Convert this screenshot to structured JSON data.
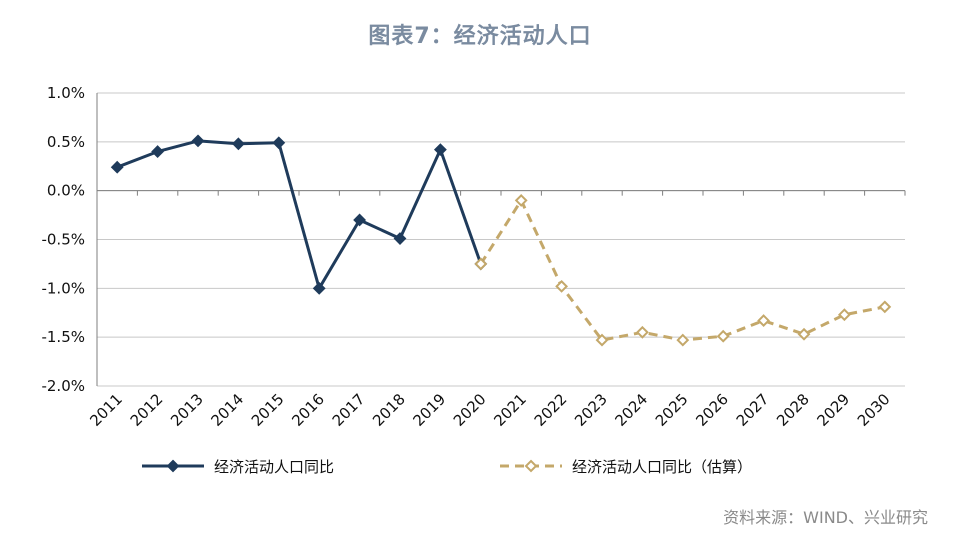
{
  "title": "图表7：经济活动人口",
  "source": "资料来源：WIND、兴业研究",
  "chart_data": {
    "type": "line",
    "categories": [
      "2011",
      "2012",
      "2013",
      "2014",
      "2015",
      "2016",
      "2017",
      "2018",
      "2019",
      "2020",
      "2021",
      "2022",
      "2023",
      "2024",
      "2025",
      "2026",
      "2027",
      "2028",
      "2029",
      "2030"
    ],
    "y_ticks": [
      "1.0%",
      "0.5%",
      "0.0%",
      "-0.5%",
      "-1.0%",
      "-1.5%",
      "-2.0%"
    ],
    "ylim": [
      -2.0,
      1.0
    ],
    "y_tick_values": [
      1.0,
      0.5,
      0.0,
      -0.5,
      -1.0,
      -1.5,
      -2.0
    ],
    "grid": true,
    "legend_position": "bottom",
    "series": [
      {
        "name": "经济活动人口同比",
        "style": "solid",
        "color": "#1f3b5b",
        "values": [
          0.24,
          0.4,
          0.51,
          0.48,
          0.49,
          -1.0,
          -0.3,
          -0.49,
          0.42,
          -0.75,
          null,
          null,
          null,
          null,
          null,
          null,
          null,
          null,
          null,
          null
        ]
      },
      {
        "name": "经济活动人口同比（估算）",
        "style": "dashed",
        "color": "#c4a86a",
        "values": [
          null,
          null,
          null,
          null,
          null,
          null,
          null,
          null,
          null,
          -0.75,
          -0.1,
          -0.98,
          -1.53,
          -1.45,
          -1.53,
          -1.49,
          -1.33,
          -1.47,
          -1.27,
          -1.19
        ]
      }
    ]
  }
}
